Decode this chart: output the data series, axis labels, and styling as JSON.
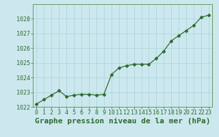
{
  "x": [
    0,
    1,
    2,
    3,
    4,
    5,
    6,
    7,
    8,
    9,
    10,
    11,
    12,
    13,
    14,
    15,
    16,
    17,
    18,
    19,
    20,
    21,
    22,
    23
  ],
  "y": [
    1022.2,
    1022.5,
    1022.8,
    1023.1,
    1022.7,
    1022.8,
    1022.85,
    1022.85,
    1022.8,
    1022.85,
    1024.2,
    1024.65,
    1024.8,
    1024.9,
    1024.9,
    1024.9,
    1025.3,
    1025.8,
    1026.5,
    1026.85,
    1027.2,
    1027.55,
    1028.1,
    1028.25
  ],
  "line_color": "#2d6a2d",
  "marker": "D",
  "marker_size": 2.5,
  "background_color": "#cce8ee",
  "grid_color": "#b0d8e0",
  "ylim": [
    1022,
    1029
  ],
  "xlim": [
    -0.5,
    23.5
  ],
  "yticks": [
    1022,
    1023,
    1024,
    1025,
    1026,
    1027,
    1028
  ],
  "xticks": [
    0,
    1,
    2,
    3,
    4,
    5,
    6,
    7,
    8,
    9,
    10,
    11,
    12,
    13,
    14,
    15,
    16,
    17,
    18,
    19,
    20,
    21,
    22,
    23
  ],
  "xlabel": "Graphe pression niveau de la mer (hPa)",
  "xlabel_color": "#2d6a2d",
  "tick_color": "#2d6a2d",
  "tick_fontsize": 6,
  "xlabel_fontsize": 8,
  "spine_color": "#5a9a5a"
}
